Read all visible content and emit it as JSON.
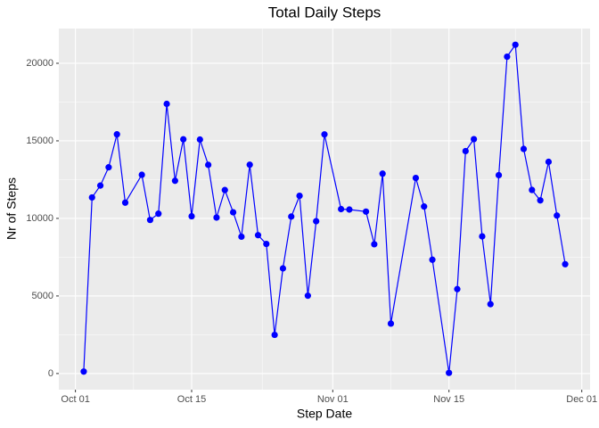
{
  "chart_data": {
    "type": "line",
    "title": "Total Daily Steps",
    "x_label": "Step Date",
    "y_label": "Nr of Steps",
    "x": [
      "Oct 02",
      "Oct 03",
      "Oct 04",
      "Oct 05",
      "Oct 06",
      "Oct 07",
      "Oct 09",
      "Oct 10",
      "Oct 11",
      "Oct 12",
      "Oct 13",
      "Oct 14",
      "Oct 15",
      "Oct 16",
      "Oct 17",
      "Oct 18",
      "Oct 19",
      "Oct 20",
      "Oct 21",
      "Oct 22",
      "Oct 23",
      "Oct 24",
      "Oct 25",
      "Oct 26",
      "Oct 27",
      "Oct 28",
      "Oct 29",
      "Oct 30",
      "Oct 31",
      "Nov 02",
      "Nov 03",
      "Nov 05",
      "Nov 06",
      "Nov 07",
      "Nov 08",
      "Nov 11",
      "Nov 12",
      "Nov 13",
      "Nov 15",
      "Nov 16",
      "Nov 17",
      "Nov 18",
      "Nov 19",
      "Nov 20",
      "Nov 21",
      "Nov 22",
      "Nov 23",
      "Nov 24",
      "Nov 25",
      "Nov 26",
      "Nov 27",
      "Nov 28",
      "Nov 29"
    ],
    "values": [
      126,
      11352,
      12116,
      13294,
      15420,
      11015,
      12811,
      9900,
      10304,
      17382,
      12426,
      15098,
      10139,
      15084,
      13452,
      10056,
      11829,
      10395,
      8821,
      13460,
      8918,
      8355,
      2492,
      6778,
      10119,
      11458,
      5018,
      9819,
      15414,
      10600,
      10571,
      10439,
      8334,
      12883,
      3219,
      12608,
      10765,
      7336,
      41,
      5441,
      14339,
      15110,
      8841,
      4472,
      12787,
      20427,
      21194,
      14478,
      11834,
      11162,
      13646,
      10183,
      7047
    ],
    "color": "#0000ff",
    "xlim": [
      "Sep 29",
      "Dec 02"
    ],
    "xticks": [
      "Oct 01",
      "Oct 15",
      "Nov 01",
      "Nov 15",
      "Dec 01"
    ],
    "ylim": [
      -1040,
      22240
    ],
    "yticks": [
      0,
      5000,
      10000,
      15000,
      20000
    ],
    "grid": true
  }
}
